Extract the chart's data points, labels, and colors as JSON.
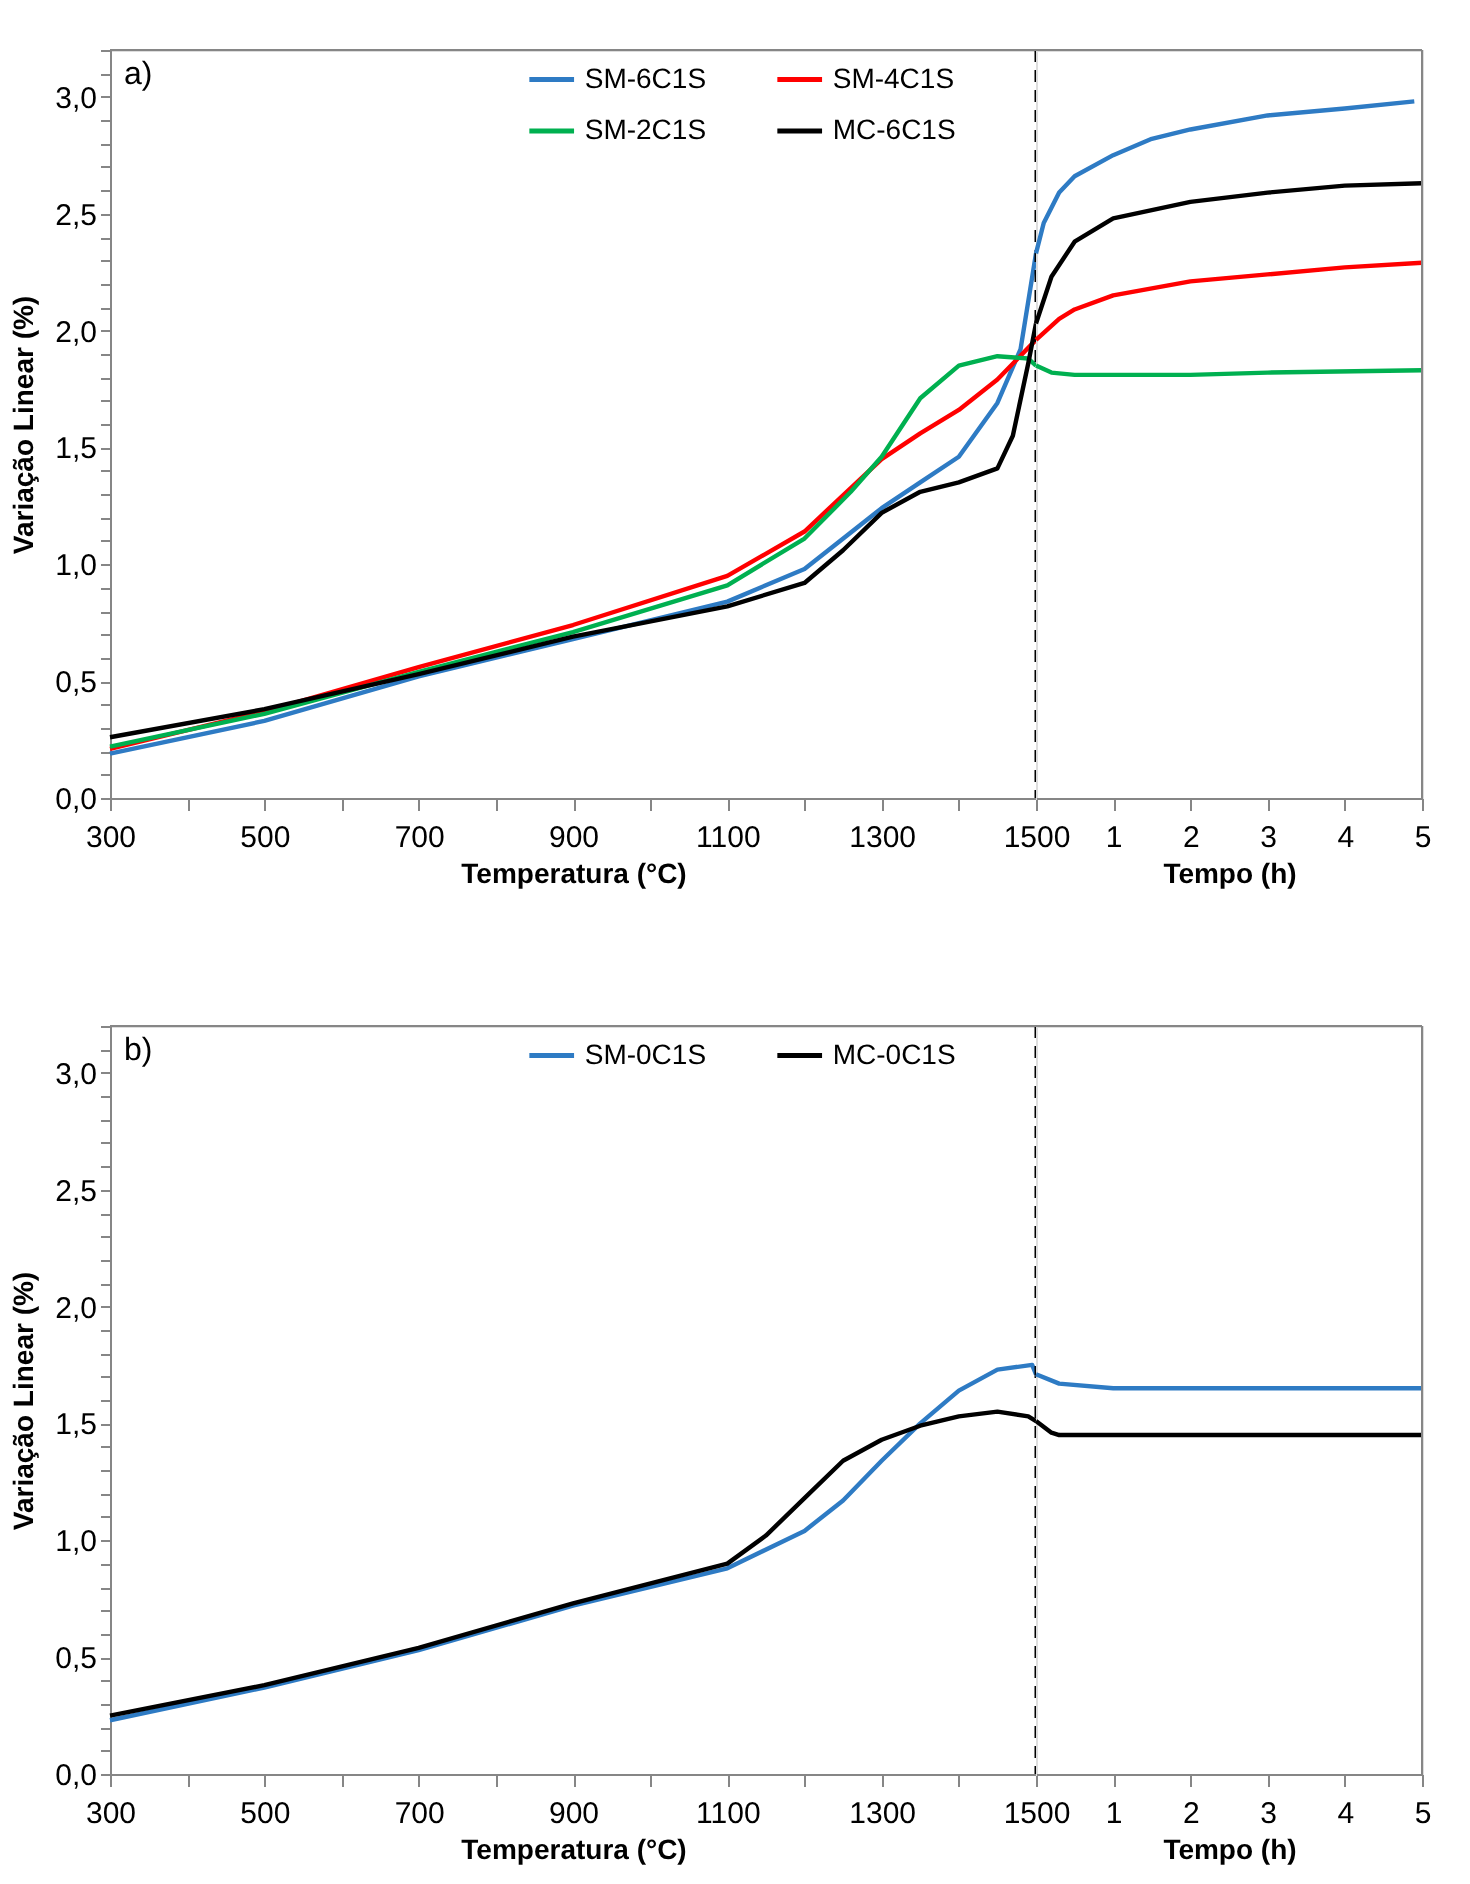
{
  "chart_data": [
    {
      "type": "line",
      "annotations": [
        {
          "text": "a)"
        }
      ],
      "xlabel": "Temperatura (°C)",
      "ylabel": "Variação Linear (%)",
      "legend": "top",
      "line_style": "solid",
      "xlim": [
        300,
        1500
      ],
      "ylim": [
        0,
        3.2
      ],
      "xticks": [
        300,
        {
          "value": 400,
          "label": null
        },
        500,
        {
          "value": 600,
          "label": null
        },
        700,
        {
          "value": 800,
          "label": null
        },
        900,
        {
          "value": 1000,
          "label": null
        },
        1100,
        {
          "value": 1200,
          "label": null
        },
        1300,
        {
          "value": 1400,
          "label": null
        },
        1500
      ],
      "yticks": [
        {
          "value": 0,
          "label": "0,0"
        },
        {
          "value": 0.1,
          "label": null
        },
        {
          "value": 0.2,
          "label": null
        },
        {
          "value": 0.3,
          "label": null
        },
        {
          "value": 0.4,
          "label": null
        },
        {
          "value": 0.5,
          "label": "0,5"
        },
        {
          "value": 0.6,
          "label": null
        },
        {
          "value": 0.7,
          "label": null
        },
        {
          "value": 0.8,
          "label": null
        },
        {
          "value": 0.9,
          "label": null
        },
        {
          "value": 1,
          "label": "1,0"
        },
        {
          "value": 1.1,
          "label": null
        },
        {
          "value": 1.2,
          "label": null
        },
        {
          "value": 1.3,
          "label": null
        },
        {
          "value": 1.4,
          "label": null
        },
        {
          "value": 1.5,
          "label": "1,5"
        },
        {
          "value": 1.6,
          "label": null
        },
        {
          "value": 1.7,
          "label": null
        },
        {
          "value": 1.8,
          "label": null
        },
        {
          "value": 1.9,
          "label": null
        },
        {
          "value": 2,
          "label": "2,0"
        },
        {
          "value": 2.1,
          "label": null
        },
        {
          "value": 2.2,
          "label": null
        },
        {
          "value": 2.3,
          "label": null
        },
        {
          "value": 2.4,
          "label": null
        },
        {
          "value": 2.5,
          "label": "2,5"
        },
        {
          "value": 2.6,
          "label": null
        },
        {
          "value": 2.7,
          "label": null
        },
        {
          "value": 2.8,
          "label": null
        },
        {
          "value": 2.9,
          "label": null
        },
        {
          "value": 3,
          "label": "3,0"
        },
        {
          "value": 3.1,
          "label": null
        },
        {
          "value": 3.2,
          "label": null
        }
      ],
      "ref_lines": [
        {
          "axis": "x",
          "value": 1500,
          "color": "#000000",
          "line_style": "dashed"
        }
      ],
      "series": [
        {
          "name": "SM-6C1S",
          "color": "#2e7bc4",
          "x": [
            300,
            500,
            700,
            900,
            1100,
            1200,
            1300,
            1350,
            1400,
            1450,
            1480,
            1500
          ],
          "values": [
            0.19,
            0.33,
            0.52,
            0.68,
            0.84,
            0.98,
            1.24,
            1.35,
            1.46,
            1.69,
            1.92,
            2.33
          ]
        },
        {
          "name": "SM-4C1S",
          "color": "#ff0000",
          "x": [
            300,
            500,
            700,
            900,
            1100,
            1200,
            1300,
            1350,
            1400,
            1450,
            1500
          ],
          "values": [
            0.21,
            0.37,
            0.56,
            0.74,
            0.95,
            1.14,
            1.45,
            1.56,
            1.66,
            1.79,
            1.96
          ]
        },
        {
          "name": "SM-2C1S",
          "color": "#00b050",
          "x": [
            300,
            500,
            700,
            900,
            1100,
            1200,
            1260,
            1300,
            1350,
            1400,
            1450,
            1490,
            1500
          ],
          "values": [
            0.22,
            0.36,
            0.54,
            0.71,
            0.91,
            1.11,
            1.31,
            1.46,
            1.71,
            1.85,
            1.89,
            1.88,
            1.85
          ]
        },
        {
          "name": "MC-6C1S",
          "color": "#000000",
          "x": [
            300,
            500,
            700,
            900,
            1100,
            1200,
            1250,
            1300,
            1350,
            1400,
            1450,
            1470,
            1490,
            1500
          ],
          "values": [
            0.26,
            0.38,
            0.53,
            0.69,
            0.82,
            0.92,
            1.06,
            1.22,
            1.31,
            1.35,
            1.41,
            1.55,
            1.86,
            2.03
          ]
        }
      ]
    },
    {
      "type": "line",
      "xlabel": "Tempo (h)",
      "tick_labels": "x",
      "line_style": "solid",
      "xlim": [
        0,
        5
      ],
      "ylim": [
        0,
        3.2
      ],
      "xticks": [
        1,
        2,
        3,
        4,
        5
      ],
      "series": [
        {
          "color": "#2e7bc4",
          "x": [
            0,
            0.1,
            0.3,
            0.5,
            1,
            1.5,
            2,
            3,
            4,
            4.9
          ],
          "values": [
            2.33,
            2.46,
            2.59,
            2.66,
            2.75,
            2.82,
            2.86,
            2.92,
            2.95,
            2.98
          ]
        },
        {
          "color": "#ff0000",
          "x": [
            0,
            0.3,
            0.5,
            1,
            2,
            3,
            4,
            5
          ],
          "values": [
            1.96,
            2.05,
            2.09,
            2.15,
            2.21,
            2.24,
            2.27,
            2.29
          ]
        },
        {
          "color": "#00b050",
          "x": [
            0,
            0.2,
            0.5,
            1,
            2,
            3,
            5
          ],
          "values": [
            1.85,
            1.82,
            1.81,
            1.81,
            1.81,
            1.82,
            1.83
          ]
        },
        {
          "color": "#000000",
          "x": [
            0,
            0.2,
            0.5,
            1,
            2,
            3,
            4,
            5
          ],
          "values": [
            2.03,
            2.23,
            2.38,
            2.48,
            2.55,
            2.59,
            2.62,
            2.63
          ]
        }
      ]
    },
    {
      "type": "line",
      "annotations": [
        {
          "text": "b)"
        }
      ],
      "xlabel": "Temperatura (°C)",
      "ylabel": "Variação Linear (%)",
      "legend": "top",
      "line_style": "solid",
      "xlim": [
        300,
        1500
      ],
      "ylim": [
        0,
        3.2
      ],
      "xticks": [
        300,
        {
          "value": 400,
          "label": null
        },
        500,
        {
          "value": 600,
          "label": null
        },
        700,
        {
          "value": 800,
          "label": null
        },
        900,
        {
          "value": 1000,
          "label": null
        },
        1100,
        {
          "value": 1200,
          "label": null
        },
        1300,
        {
          "value": 1400,
          "label": null
        },
        1500
      ],
      "yticks": [
        {
          "value": 0,
          "label": "0,0"
        },
        {
          "value": 0.1,
          "label": null
        },
        {
          "value": 0.2,
          "label": null
        },
        {
          "value": 0.3,
          "label": null
        },
        {
          "value": 0.4,
          "label": null
        },
        {
          "value": 0.5,
          "label": "0,5"
        },
        {
          "value": 0.6,
          "label": null
        },
        {
          "value": 0.7,
          "label": null
        },
        {
          "value": 0.8,
          "label": null
        },
        {
          "value": 0.9,
          "label": null
        },
        {
          "value": 1,
          "label": "1,0"
        },
        {
          "value": 1.1,
          "label": null
        },
        {
          "value": 1.2,
          "label": null
        },
        {
          "value": 1.3,
          "label": null
        },
        {
          "value": 1.4,
          "label": null
        },
        {
          "value": 1.5,
          "label": "1,5"
        },
        {
          "value": 1.6,
          "label": null
        },
        {
          "value": 1.7,
          "label": null
        },
        {
          "value": 1.8,
          "label": null
        },
        {
          "value": 1.9,
          "label": null
        },
        {
          "value": 2,
          "label": "2,0"
        },
        {
          "value": 2.1,
          "label": null
        },
        {
          "value": 2.2,
          "label": null
        },
        {
          "value": 2.3,
          "label": null
        },
        {
          "value": 2.4,
          "label": null
        },
        {
          "value": 2.5,
          "label": "2,5"
        },
        {
          "value": 2.6,
          "label": null
        },
        {
          "value": 2.7,
          "label": null
        },
        {
          "value": 2.8,
          "label": null
        },
        {
          "value": 2.9,
          "label": null
        },
        {
          "value": 3,
          "label": "3,0"
        },
        {
          "value": 3.1,
          "label": null
        },
        {
          "value": 3.2,
          "label": null
        }
      ],
      "ref_lines": [
        {
          "axis": "x",
          "value": 1500,
          "color": "#000000",
          "line_style": "dashed"
        }
      ],
      "series": [
        {
          "name": "SM-0C1S",
          "color": "#2e7bc4",
          "x": [
            300,
            500,
            700,
            900,
            1100,
            1200,
            1250,
            1300,
            1350,
            1400,
            1450,
            1495,
            1500
          ],
          "values": [
            0.23,
            0.37,
            0.53,
            0.72,
            0.88,
            1.04,
            1.17,
            1.34,
            1.5,
            1.64,
            1.73,
            1.75,
            1.71
          ]
        },
        {
          "name": "MC-0C1S",
          "color": "#000000",
          "x": [
            300,
            500,
            700,
            900,
            1100,
            1150,
            1200,
            1250,
            1300,
            1350,
            1400,
            1450,
            1490,
            1500
          ],
          "values": [
            0.25,
            0.38,
            0.54,
            0.73,
            0.9,
            1.02,
            1.18,
            1.34,
            1.43,
            1.49,
            1.53,
            1.55,
            1.53,
            1.51
          ]
        }
      ]
    },
    {
      "type": "line",
      "xlabel": "Tempo (h)",
      "tick_labels": "x",
      "line_style": "solid",
      "xlim": [
        0,
        5
      ],
      "ylim": [
        0,
        3.2
      ],
      "xticks": [
        1,
        2,
        3,
        4,
        5
      ],
      "series": [
        {
          "color": "#2e7bc4",
          "x": [
            0,
            0.3,
            1,
            5
          ],
          "values": [
            1.71,
            1.67,
            1.65,
            1.65
          ]
        },
        {
          "color": "#000000",
          "x": [
            0,
            0.2,
            0.3,
            5
          ],
          "values": [
            1.51,
            1.46,
            1.45,
            1.45
          ]
        }
      ]
    }
  ]
}
